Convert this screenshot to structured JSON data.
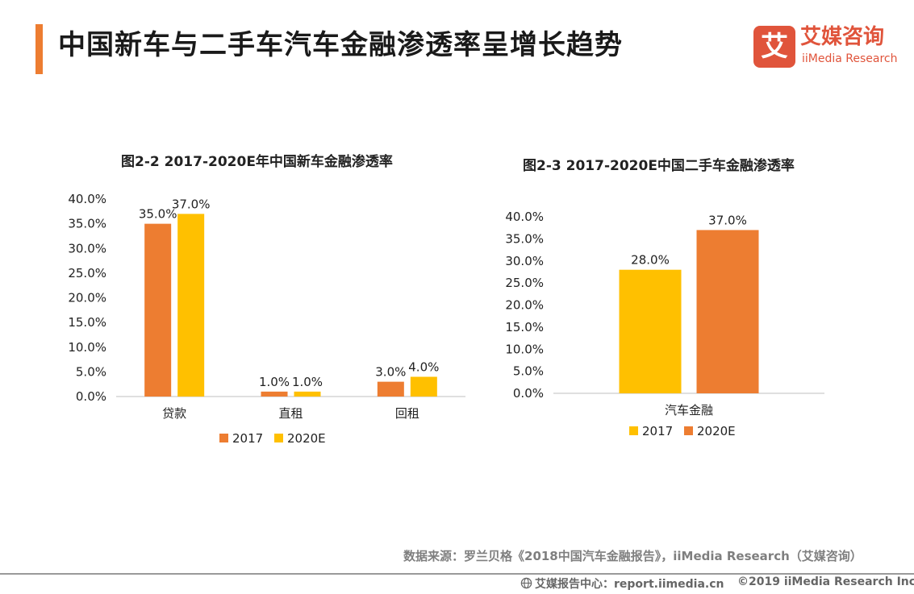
{
  "page": {
    "title": "中国新车与二手车汽车金融渗透率呈增长趋势",
    "accent_color": "#ED7D31"
  },
  "logo": {
    "mark": "艾",
    "name_cn": "艾媒咨询",
    "name_en": "iiMedia Research",
    "color": "#E0543B"
  },
  "chart_data": [
    {
      "type": "bar",
      "title": "图2-2 2017-2020E年中国新车金融渗透率",
      "categories": [
        "贷款",
        "直租",
        "回租"
      ],
      "series": [
        {
          "name": "2017",
          "values": [
            35.0,
            1.0,
            3.0
          ],
          "labels": [
            "35.0%",
            "1.0%",
            "3.0%"
          ],
          "color": "#ED7D31"
        },
        {
          "name": "2020E",
          "values": [
            37.0,
            1.0,
            4.0
          ],
          "labels": [
            "37.0%",
            "1.0%",
            "4.0%"
          ],
          "color": "#FFC000"
        }
      ],
      "ylim": [
        0,
        40
      ],
      "yticks": [
        "0.0%",
        "5.0%",
        "10.0%",
        "15.0%",
        "20.0%",
        "25.0%",
        "30.0%",
        "35.0%",
        "40.0%"
      ],
      "xlabel": "",
      "ylabel": "",
      "grid": false,
      "legend": "bottom"
    },
    {
      "type": "bar",
      "title": "图2-3 2017-2020E中国二手车金融渗透率",
      "categories": [
        "汽车金融"
      ],
      "series": [
        {
          "name": "2017",
          "values": [
            28.0
          ],
          "labels": [
            "28.0%"
          ],
          "color": "#FFC000"
        },
        {
          "name": "2020E",
          "values": [
            37.0
          ],
          "labels": [
            "37.0%"
          ],
          "color": "#ED7D31"
        }
      ],
      "ylim": [
        0,
        40
      ],
      "yticks": [
        "0.0%",
        "5.0%",
        "10.0%",
        "15.0%",
        "20.0%",
        "25.0%",
        "30.0%",
        "35.0%",
        "40.0%"
      ],
      "xlabel": "",
      "ylabel": "",
      "grid": false,
      "legend": "bottom"
    }
  ],
  "source": {
    "text": "数据来源：罗兰贝格《2018中国汽车金融报告》，iiMedia Research（艾媒咨询）"
  },
  "footer": {
    "left": "艾媒报告中心：report.iimedia.cn",
    "right": "©2019  iiMedia Research  Inc"
  }
}
